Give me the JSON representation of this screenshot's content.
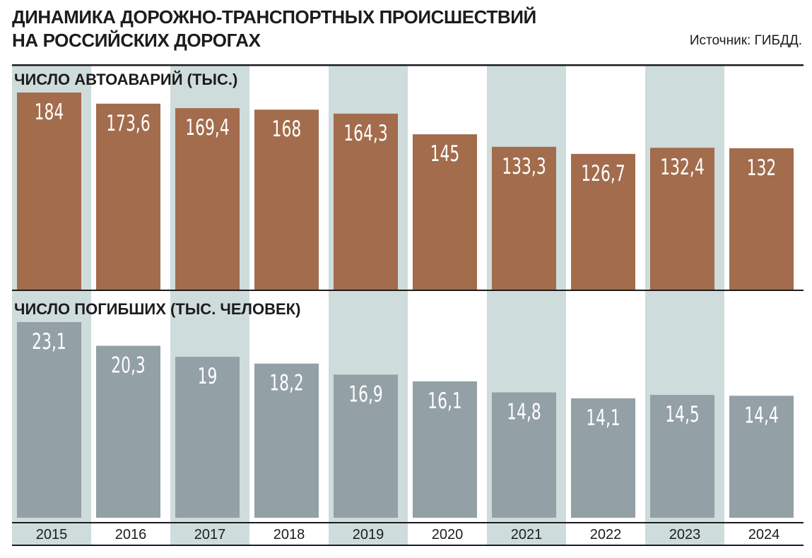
{
  "header": {
    "title_line1": "ДИНАМИКА ДОРОЖНО-ТРАНСПОРТНЫХ ПРОИСШЕСТВИЙ",
    "title_line2": "НА РОССИЙСКИХ ДОРОГАХ",
    "source": "Источник: ГИБДД."
  },
  "colors": {
    "accidents_bar": "#a36c4c",
    "deaths_bar": "#93a0a6",
    "highlight_column": "#cfdcdc",
    "rule": "#1c1c1c",
    "value_text": "#ffffff"
  },
  "chart_data": [
    {
      "type": "bar",
      "title": "ЧИСЛО АВТОАВАРИЙ (ТЫС.)",
      "categories": [
        "2015",
        "2016",
        "2017",
        "2018",
        "2019",
        "2020",
        "2021",
        "2022",
        "2023",
        "2024"
      ],
      "values": [
        184,
        173.6,
        169.4,
        168,
        164.3,
        145,
        133.3,
        126.7,
        132.4,
        132
      ],
      "value_labels": [
        "184",
        "173,6",
        "169,4",
        "168",
        "164,3",
        "145",
        "133,3",
        "126,7",
        "132,4",
        "132"
      ],
      "ylim": [
        0,
        184
      ],
      "grid": false,
      "legend": "none"
    },
    {
      "type": "bar",
      "title": "ЧИСЛО ПОГИБШИХ (ТЫС. ЧЕЛОВЕК)",
      "categories": [
        "2015",
        "2016",
        "2017",
        "2018",
        "2019",
        "2020",
        "2021",
        "2022",
        "2023",
        "2024"
      ],
      "values": [
        23.1,
        20.3,
        19,
        18.2,
        16.9,
        16.1,
        14.8,
        14.1,
        14.5,
        14.4
      ],
      "value_labels": [
        "23,1",
        "20,3",
        "19",
        "18,2",
        "16,9",
        "16,1",
        "14,8",
        "14,1",
        "14,5",
        "14,4"
      ],
      "ylim": [
        0,
        23.1
      ],
      "grid": false,
      "legend": "none"
    }
  ],
  "highlighted_years": [
    "2015",
    "2017",
    "2019",
    "2021",
    "2023"
  ]
}
